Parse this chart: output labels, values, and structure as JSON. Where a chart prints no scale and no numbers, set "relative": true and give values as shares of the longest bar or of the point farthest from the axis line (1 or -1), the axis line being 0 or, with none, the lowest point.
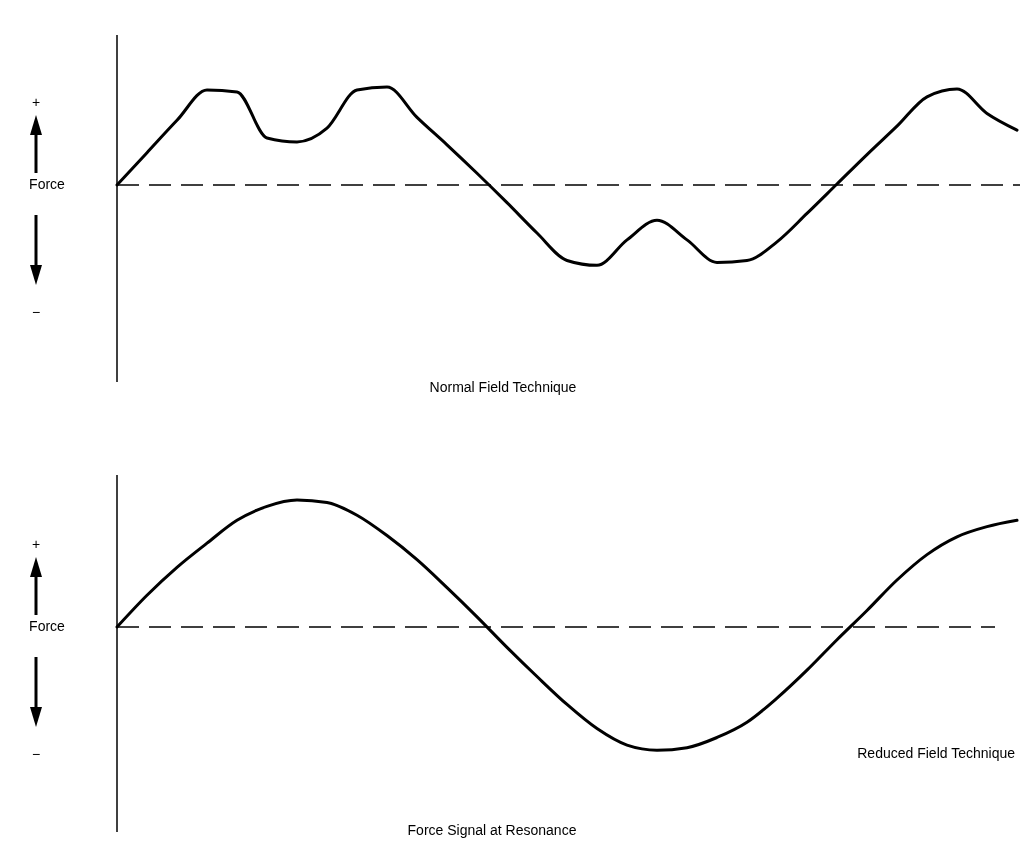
{
  "chart_data": [
    {
      "type": "line",
      "title": "Normal Field Technique",
      "ylabel": "Force",
      "annotations": [
        "+",
        "−"
      ],
      "relative": true,
      "line_style": "solid",
      "marker": "none",
      "ref_lines": [
        {
          "axis": "y",
          "value": 0,
          "line_style": "dashed",
          "color": "#000000"
        }
      ],
      "categories": [
        null,
        null,
        null,
        null,
        null,
        null,
        null,
        null,
        null,
        null,
        null,
        null,
        null,
        null,
        null,
        null,
        null,
        null,
        null,
        null,
        null,
        null,
        null,
        null,
        null,
        null,
        null,
        null,
        null,
        null,
        null
      ],
      "series": [
        {
          "color": "#000000",
          "values": [
            0,
            0.33,
            0.66,
            0.97,
            0.95,
            0.48,
            0.44,
            0.58,
            0.97,
            1,
            0.69,
            0.41,
            0.12,
            -0.18,
            -0.49,
            -0.77,
            -0.82,
            -0.56,
            -0.36,
            -0.56,
            -0.79,
            -0.77,
            -0.58,
            -0.29,
            0.01,
            0.31,
            0.6,
            0.9,
            0.98,
            0.73,
            0.56
          ]
        }
      ]
    },
    {
      "type": "line",
      "title": "Force Signal at Resonance",
      "ylabel": "Force",
      "annotations": [
        "+",
        "−"
      ],
      "relative": true,
      "line_style": "solid",
      "marker": "none",
      "ref_lines": [
        {
          "axis": "y",
          "value": 0,
          "line_style": "dashed",
          "color": "#000000"
        }
      ],
      "categories": [
        null,
        null,
        null,
        null,
        null,
        null,
        null,
        null,
        null,
        null,
        null,
        null,
        null,
        null,
        null,
        null,
        null,
        null,
        null,
        null,
        null,
        null,
        null,
        null,
        null,
        null,
        null,
        null,
        null,
        null,
        null
      ],
      "series": [
        {
          "name": "Reduced Field Technique",
          "color": "#000000",
          "values": [
            0,
            0.25,
            0.47,
            0.66,
            0.84,
            0.95,
            1,
            0.98,
            0.88,
            0.72,
            0.53,
            0.31,
            0.08,
            -0.16,
            -0.39,
            -0.61,
            -0.8,
            -0.93,
            -0.97,
            -0.95,
            -0.87,
            -0.75,
            -0.56,
            -0.34,
            -0.1,
            0.13,
            0.37,
            0.57,
            0.71,
            0.79,
            0.84
          ]
        }
      ]
    }
  ]
}
